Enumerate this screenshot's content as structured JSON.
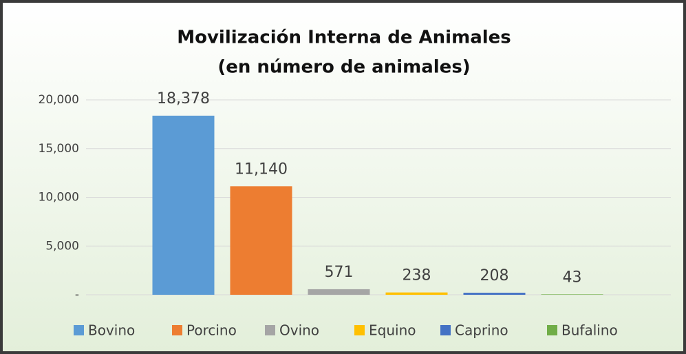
{
  "chart_data": {
    "type": "bar",
    "title": "Movilización Interna de Animales",
    "subtitle": "(en número de animales)",
    "categories": [
      "Bovino",
      "Porcino",
      "Ovino",
      "Equino",
      "Caprino",
      "Bufalino"
    ],
    "values": [
      18378,
      11140,
      571,
      238,
      208,
      43
    ],
    "value_labels": [
      "18,378",
      "11,140",
      "571",
      "238",
      "208",
      "43"
    ],
    "colors": [
      "#5b9bd5",
      "#ed7d31",
      "#a5a5a5",
      "#ffc000",
      "#4472c4",
      "#70ad47"
    ],
    "ylim": [
      0,
      20000
    ],
    "yticks": [
      {
        "value": 0,
        "label": "-"
      },
      {
        "value": 5000,
        "label": "5,000"
      },
      {
        "value": 10000,
        "label": "10,000"
      },
      {
        "value": 15000,
        "label": "15,000"
      },
      {
        "value": 20000,
        "label": "20,000"
      }
    ],
    "grid": true,
    "legend": "bottom"
  }
}
